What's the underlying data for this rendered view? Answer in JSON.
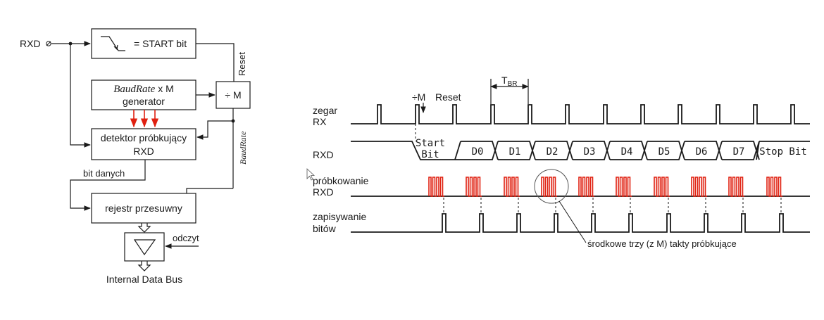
{
  "block_diagram": {
    "input_label": "RXD",
    "start_bit_block": "= START bit",
    "reset_label": "Reset",
    "generator_line1_italic": "BaudRate",
    "generator_line1_rest": " x M",
    "generator_line2": "generator",
    "divider_label": "÷ M",
    "detector_line1": "detektor próbkujący",
    "detector_line2": "RXD",
    "baudrate_label": "BaudRate",
    "data_bit_label": "bit danych",
    "shift_register_label": "rejestr przesuwny",
    "read_label": "odczyt",
    "bus_label": "Internal Data Bus"
  },
  "timing_diagram": {
    "tbr_label": "T",
    "tbr_sub": "BR",
    "div_m_label": "÷M",
    "reset_label": "Reset",
    "rows": {
      "clock_line1": "zegar",
      "clock_line2": "RX",
      "rxd": "RXD",
      "sampling_line1": "próbkowanie",
      "sampling_line2": "RXD",
      "writing_line1": "zapisywanie",
      "writing_line2": "bitów"
    },
    "bits": [
      "D0",
      "D1",
      "D2",
      "D3",
      "D4",
      "D5",
      "D6",
      "D7"
    ],
    "start_line1": "Start",
    "start_line2": "Bit",
    "stop_label": "Stop Bit",
    "annotation": "środkowe trzy (z M) takty próbkujące"
  },
  "colors": {
    "line": "#1a1a1a",
    "sampling_pulses": "#e02010"
  }
}
